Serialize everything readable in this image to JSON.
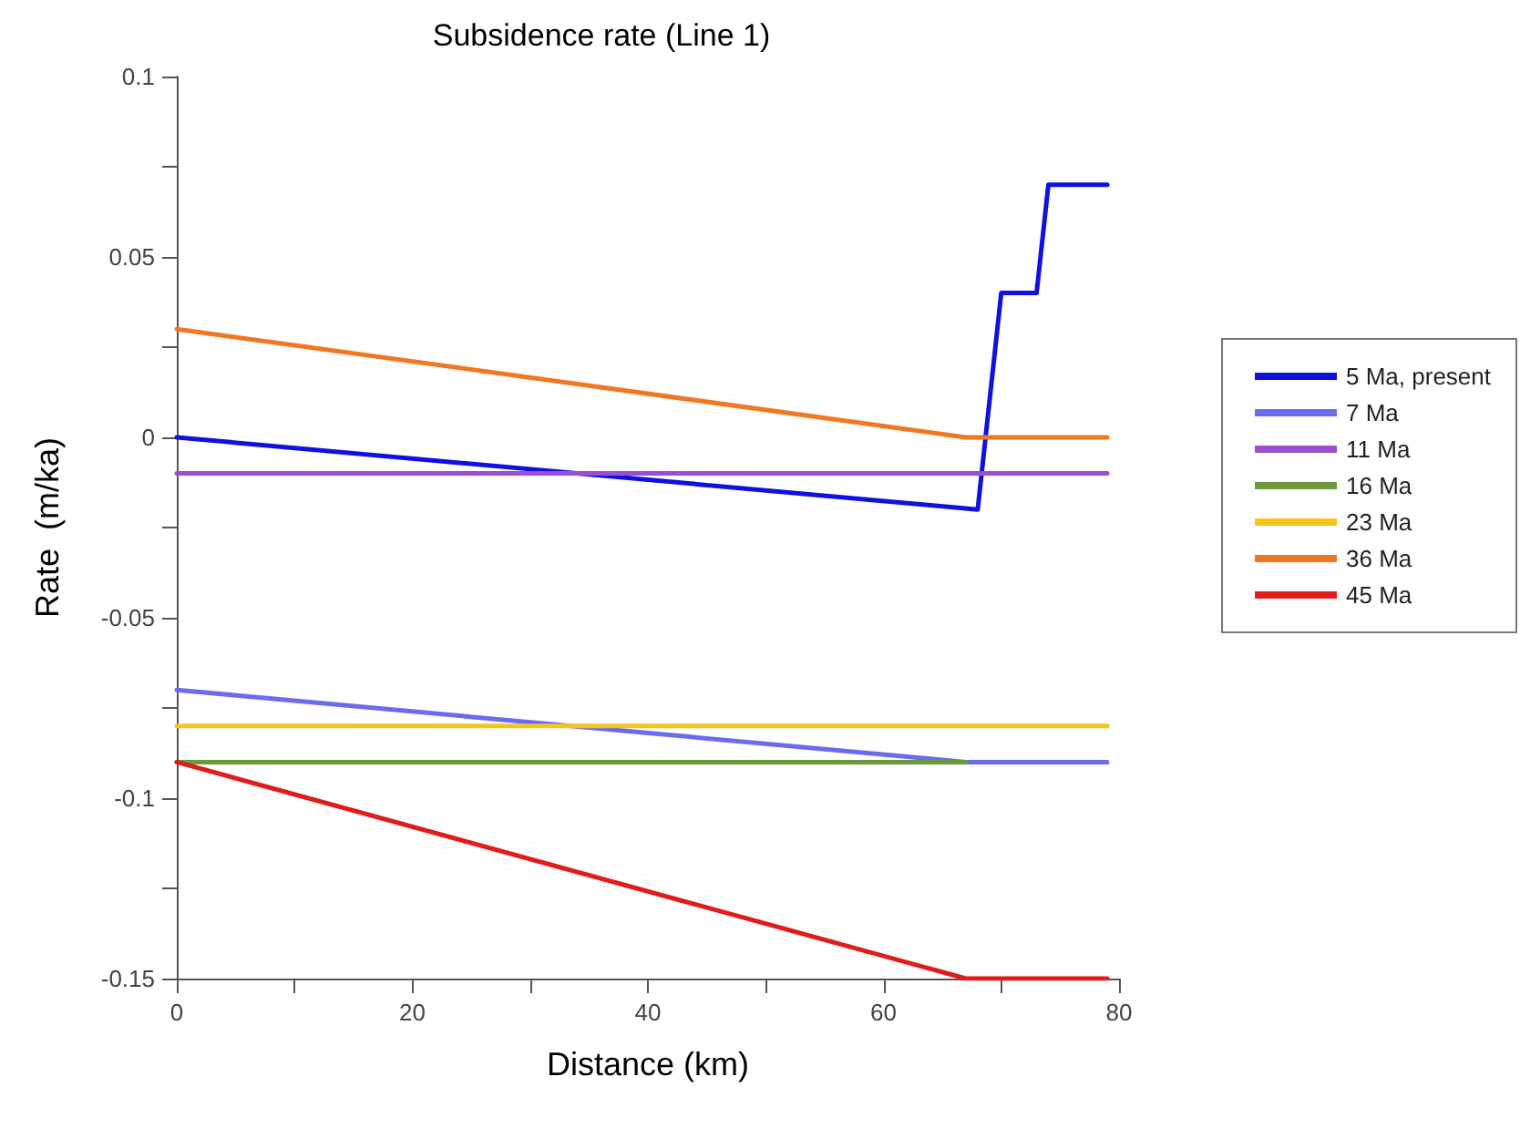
{
  "chart_data": {
    "type": "line",
    "title": "Subsidence rate (Line 1)",
    "xlabel": "Distance (km)",
    "ylabel": "Rate  (m/ka)",
    "xlim": [
      0,
      80
    ],
    "xticks": [
      0,
      {
        "value": 10,
        "label": null
      },
      20,
      {
        "value": 30,
        "label": null
      },
      40,
      {
        "value": 50,
        "label": null
      },
      60,
      {
        "value": 70,
        "label": null
      },
      80
    ],
    "ylim": [
      -0.15,
      0.1
    ],
    "yticks": [
      -0.15,
      {
        "value": -0.125,
        "label": null
      },
      -0.1,
      {
        "value": -0.075,
        "label": null
      },
      -0.05,
      {
        "value": -0.025,
        "label": null
      },
      0,
      {
        "value": 0.025,
        "label": null
      },
      0.05,
      {
        "value": 0.075,
        "label": null
      },
      0.1
    ],
    "grid": false,
    "legend": "right",
    "marker": "none",
    "line_style": "solid",
    "series": [
      {
        "name": "5 Ma, present",
        "color": "#1010e0",
        "x": [
          0,
          68,
          70,
          73,
          74,
          79
        ],
        "values": [
          0,
          -0.02,
          0.04,
          0.04,
          0.07,
          0.07
        ]
      },
      {
        "name": "7 Ma",
        "color": "#6b6bef",
        "x": [
          0,
          67,
          79
        ],
        "values": [
          -0.07,
          -0.09,
          -0.09
        ]
      },
      {
        "name": "11 Ma",
        "color": "#9b4fd0",
        "x": [
          0,
          79
        ],
        "values": [
          -0.01,
          -0.01
        ]
      },
      {
        "name": "16 Ma",
        "color": "#6a9a3a",
        "x": [
          0,
          67
        ],
        "values": [
          -0.09,
          -0.09
        ]
      },
      {
        "name": "23 Ma",
        "color": "#f5c518",
        "x": [
          0,
          79
        ],
        "values": [
          -0.08,
          -0.08
        ]
      },
      {
        "name": "36 Ma",
        "color": "#f07820",
        "x": [
          0,
          67,
          79
        ],
        "values": [
          0.03,
          0,
          0
        ]
      },
      {
        "name": "45 Ma",
        "color": "#e01c1c",
        "x": [
          0,
          67,
          79
        ],
        "values": [
          -0.09,
          -0.15,
          -0.15
        ]
      }
    ]
  }
}
